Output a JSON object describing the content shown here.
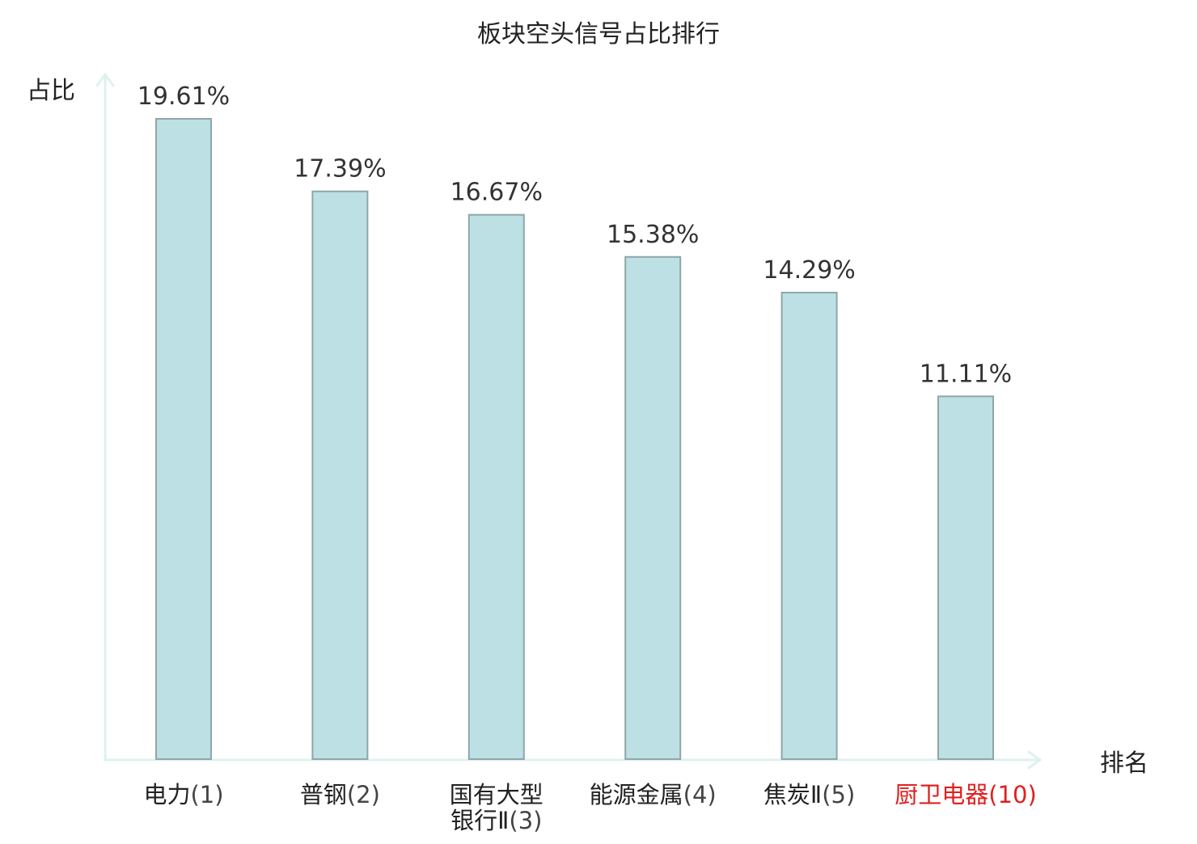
{
  "chart_data": {
    "type": "bar",
    "title": "板块空头信号占比排行",
    "ylabel": "占比",
    "xlabel": "排名",
    "categories": [
      "电力",
      "普钢",
      "国有大型银行Ⅱ",
      "能源金属",
      "焦炭Ⅱ",
      "厨卫电器"
    ],
    "category_lines": [
      [
        "电力"
      ],
      [
        "普钢"
      ],
      [
        "国有大型",
        "银行Ⅱ"
      ],
      [
        "能源金属"
      ],
      [
        "焦炭Ⅱ"
      ],
      [
        "厨卫电器"
      ]
    ],
    "ranks": [
      "(1)",
      "(2)",
      "(3)",
      "(4)",
      "(5)",
      "(10)"
    ],
    "values": [
      19.61,
      17.39,
      16.67,
      15.38,
      14.29,
      11.11
    ],
    "value_labels": [
      "19.61%",
      "17.39%",
      "16.67%",
      "15.38%",
      "14.29%",
      "11.11%"
    ],
    "highlight_index": 5,
    "ylim": [
      0,
      20
    ],
    "grid": false,
    "legend": "none",
    "colors": {
      "bar_fill": "#bce0e3",
      "bar_stroke": "#8fa6a8",
      "axis": "#ddf2ef",
      "text": "#222222",
      "value_text": "#333333",
      "rank_text": "#444444",
      "highlight": "#e02020"
    }
  }
}
